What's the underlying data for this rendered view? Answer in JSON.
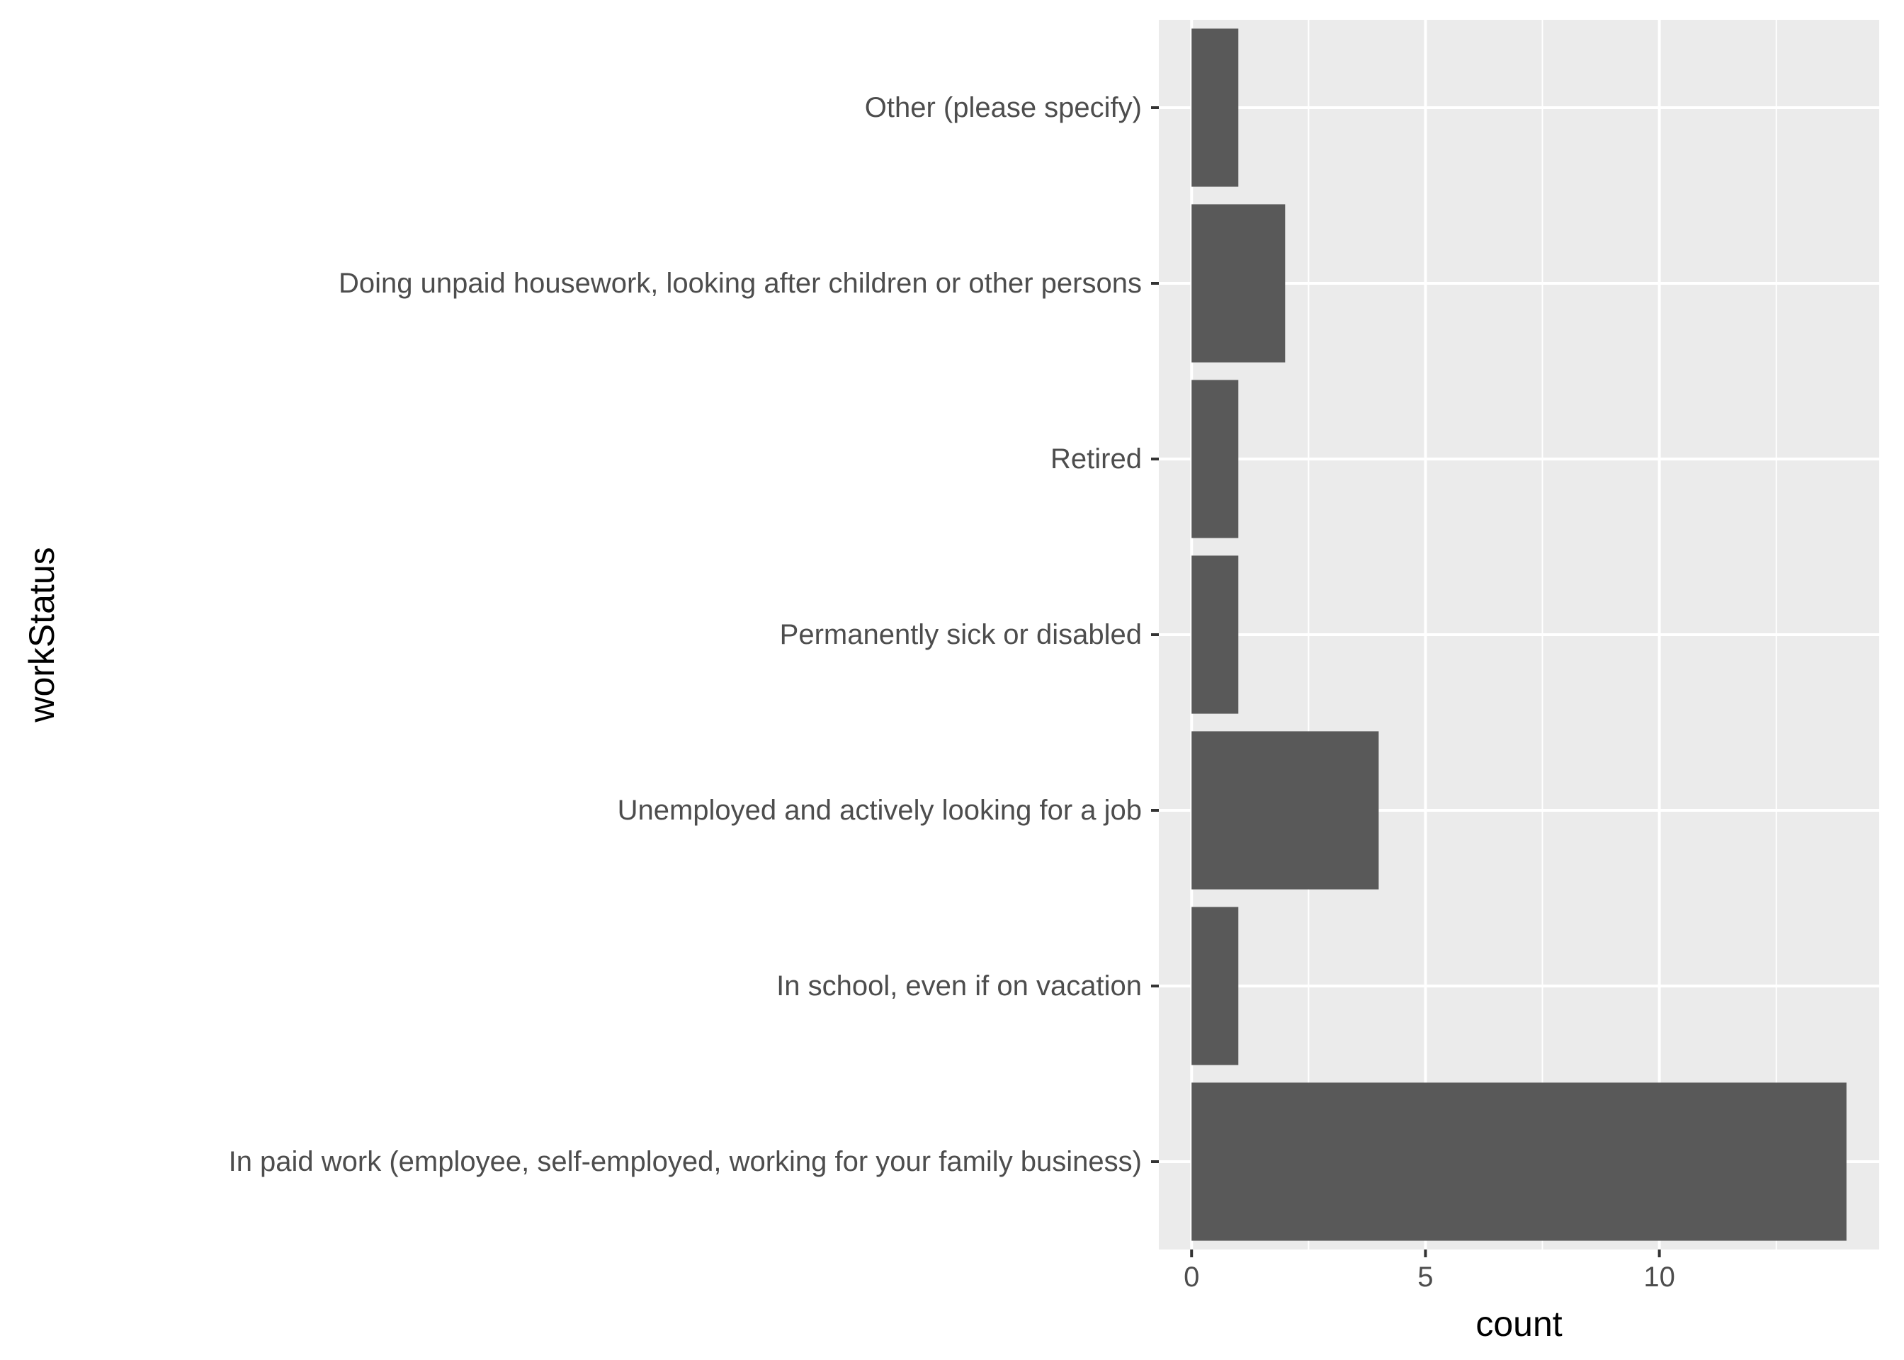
{
  "chart_data": {
    "type": "bar",
    "orientation": "horizontal",
    "title": "",
    "xlabel": "count",
    "ylabel": "workStatus",
    "categories": [
      "In paid work (employee, self-employed, working for your family business)",
      "In school, even if on vacation",
      "Unemployed and actively looking for a job",
      "Permanently sick or disabled",
      "Retired",
      "Doing unpaid housework, looking after children or other persons",
      "Other (please specify)"
    ],
    "values": [
      14,
      1,
      4,
      1,
      1,
      2,
      1
    ],
    "xlim": [
      -0.7,
      14.7
    ],
    "x_ticks": [
      0,
      5,
      10
    ],
    "x_tick_labels": [
      "0",
      "5",
      "10"
    ],
    "grid": true,
    "colors": {
      "bar": "#595959",
      "panel": "#ebebeb",
      "grid": "#ffffff",
      "tick_text": "#4d4d4d",
      "tick_mark": "#333333",
      "title_text": "#000000"
    }
  }
}
